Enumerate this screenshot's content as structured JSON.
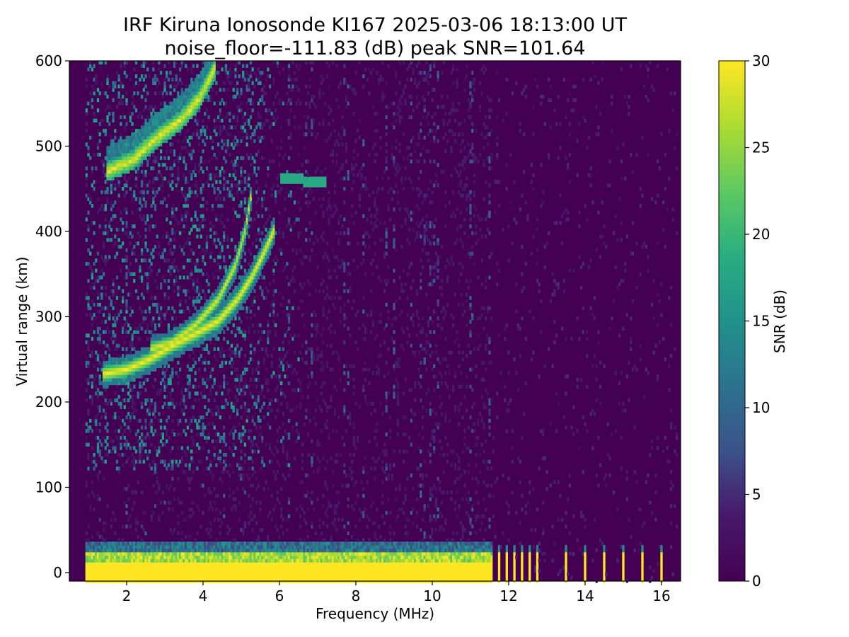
{
  "chart_data": {
    "type": "heatmap",
    "title": "IRF Kiruna Ionosonde KI167 2025-03-06 18:13:00  UT",
    "subtitle": "noise_floor=-111.83 (dB) peak SNR=101.64",
    "xlabel": "Frequency (MHz)",
    "ylabel": "Virtual range (km)",
    "colorbar_label": "SNR (dB)",
    "colormap": "viridis",
    "xlim": [
      0.5,
      16.5
    ],
    "ylim": [
      -10,
      600
    ],
    "clim": [
      0,
      30
    ],
    "x_ticks": [
      2,
      4,
      6,
      8,
      10,
      12,
      14,
      16
    ],
    "y_ticks": [
      0,
      100,
      200,
      300,
      400,
      500,
      600
    ],
    "colorbar_ticks": [
      0,
      5,
      10,
      15,
      20,
      25,
      30
    ],
    "data_freq_range_mhz": [
      0.95,
      16.45
    ],
    "features": {
      "ground_echo": {
        "freq_mhz": [
          0.95,
          11.6
        ],
        "range_km": [
          -10,
          35
        ],
        "snr_db": 30
      },
      "pulsed_echoes_mhz": [
        11.75,
        11.95,
        12.15,
        12.35,
        12.55,
        12.75,
        13.5,
        14.0,
        14.5,
        15.0,
        15.5,
        16.0
      ],
      "o_trace_km": [
        [
          1.4,
          233
        ],
        [
          2.0,
          238
        ],
        [
          2.6,
          250
        ],
        [
          3.2,
          266
        ],
        [
          3.8,
          280
        ],
        [
          4.4,
          295
        ],
        [
          4.9,
          320
        ],
        [
          5.3,
          348
        ],
        [
          5.6,
          375
        ],
        [
          5.85,
          400
        ]
      ],
      "x_trace_km": [
        [
          2.6,
          262
        ],
        [
          3.2,
          270
        ],
        [
          3.8,
          290
        ],
        [
          4.4,
          320
        ],
        [
          4.85,
          360
        ],
        [
          5.1,
          400
        ],
        [
          5.25,
          440
        ]
      ],
      "upper_layer_km": [
        [
          1.5,
          470
        ],
        [
          2.2,
          485
        ],
        [
          2.8,
          510
        ],
        [
          3.4,
          530
        ],
        [
          3.9,
          555
        ],
        [
          4.3,
          590
        ]
      ],
      "sporadic_segment_km": [
        [
          6.0,
          462
        ],
        [
          7.2,
          458
        ]
      ]
    }
  }
}
